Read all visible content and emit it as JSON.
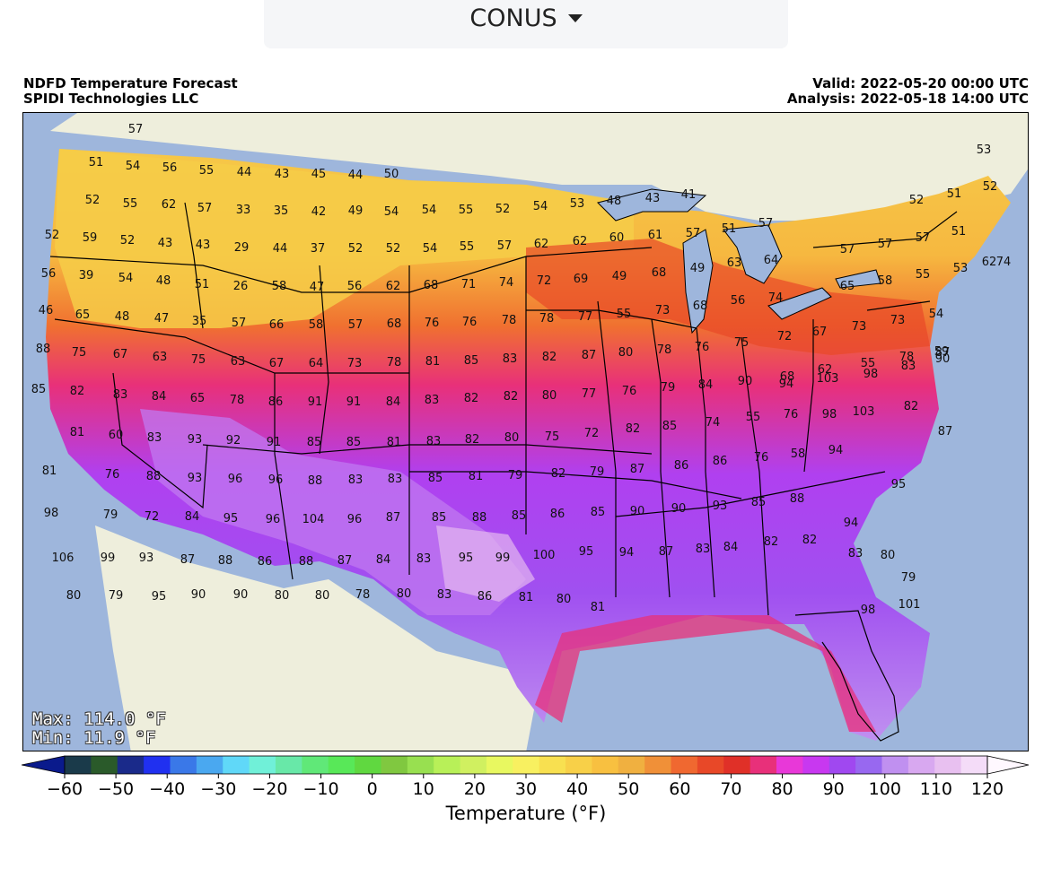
{
  "region_selector": {
    "value": "CONUS",
    "icon": "caret-down-icon"
  },
  "header": {
    "title": "NDFD Temperature Forecast",
    "credit": "SPIDI Technologies LLC",
    "valid": "Valid: 2022-05-20 00:00 UTC",
    "analysis": "Analysis: 2022-05-18 14:00 UTC"
  },
  "stats": {
    "max": "Max: 114.0 °F",
    "min": "Min: 11.9 °F"
  },
  "colorbar": {
    "title": "Temperature (°F)",
    "ticks": [
      "−60",
      "−50",
      "−40",
      "−30",
      "−20",
      "−10",
      "0",
      "10",
      "20",
      "30",
      "40",
      "50",
      "60",
      "70",
      "80",
      "90",
      "100",
      "110",
      "120"
    ],
    "colors": [
      "#0a1a8c",
      "#1a3a4a",
      "#2a5a2a",
      "#1a2a8a",
      "#2030f0",
      "#3a78e8",
      "#4aa8f0",
      "#60d8f8",
      "#70f0d8",
      "#68e8a8",
      "#60e878",
      "#58e858",
      "#60d840",
      "#80c840",
      "#98e050",
      "#b8f058",
      "#d0f060",
      "#e8f860",
      "#f8f060",
      "#f8e050",
      "#f8d048",
      "#f8c040",
      "#f0b040",
      "#f09038",
      "#f06830",
      "#e84828",
      "#e03028",
      "#e8307a",
      "#e838d8",
      "#c838f0",
      "#a048f0",
      "#9868f0",
      "#c090f0",
      "#d8a8f0",
      "#e8c0f0",
      "#f4dcf8",
      "#fff8ff"
    ],
    "min": -60,
    "max": 120
  },
  "map_labels": [
    [
      "57"
    ],
    [
      "51"
    ],
    [
      "54"
    ],
    [
      "56"
    ],
    [
      "55"
    ],
    [
      "44"
    ],
    [
      "43"
    ],
    [
      "45"
    ],
    [
      "44"
    ],
    [
      "50"
    ],
    [
      "52"
    ],
    [
      "55"
    ],
    [
      "62"
    ],
    [
      "57"
    ],
    [
      "33"
    ],
    [
      "35"
    ],
    [
      "42"
    ],
    [
      "49"
    ],
    [
      "54"
    ],
    [
      "54"
    ],
    [
      "55"
    ],
    [
      "52"
    ],
    [
      "54"
    ],
    [
      "53"
    ],
    [
      "48"
    ],
    [
      "43"
    ],
    [
      "41"
    ],
    [
      "52"
    ],
    [
      "51"
    ],
    [
      "52"
    ],
    [
      "53"
    ],
    [
      "52"
    ],
    [
      "59"
    ],
    [
      "52"
    ],
    [
      "43"
    ],
    [
      "43"
    ],
    [
      "29"
    ],
    [
      "44"
    ],
    [
      "37"
    ],
    [
      "52"
    ],
    [
      "52"
    ],
    [
      "54"
    ],
    [
      "55"
    ],
    [
      "57"
    ],
    [
      "62"
    ],
    [
      "62"
    ],
    [
      "60"
    ],
    [
      "61"
    ],
    [
      "57"
    ],
    [
      "51"
    ],
    [
      "57"
    ],
    [
      "57"
    ],
    [
      "57"
    ],
    [
      "57"
    ],
    [
      "51"
    ],
    [
      "62"
    ],
    [
      "56"
    ],
    [
      "39"
    ],
    [
      "54"
    ],
    [
      "48"
    ],
    [
      "51"
    ],
    [
      "26"
    ],
    [
      "58"
    ],
    [
      "47"
    ],
    [
      "56"
    ],
    [
      "62"
    ],
    [
      "68"
    ],
    [
      "71"
    ],
    [
      "74"
    ],
    [
      "72"
    ],
    [
      "69"
    ],
    [
      "49"
    ],
    [
      "68"
    ],
    [
      "49"
    ],
    [
      "63"
    ],
    [
      "64"
    ],
    [
      "65"
    ],
    [
      "58"
    ],
    [
      "55"
    ],
    [
      "53"
    ],
    [
      "74"
    ],
    [
      "46"
    ],
    [
      "65"
    ],
    [
      "48"
    ],
    [
      "47"
    ],
    [
      "35"
    ],
    [
      "57"
    ],
    [
      "66"
    ],
    [
      "58"
    ],
    [
      "57"
    ],
    [
      "68"
    ],
    [
      "76"
    ],
    [
      "76"
    ],
    [
      "78"
    ],
    [
      "78"
    ],
    [
      "77"
    ],
    [
      "55"
    ],
    [
      "73"
    ],
    [
      "68"
    ],
    [
      "56"
    ],
    [
      "74"
    ],
    [
      "72"
    ],
    [
      "67"
    ],
    [
      "73"
    ],
    [
      "73"
    ],
    [
      "54"
    ],
    [
      "88"
    ],
    [
      "75"
    ],
    [
      "67"
    ],
    [
      "63"
    ],
    [
      "75"
    ],
    [
      "63"
    ],
    [
      "67"
    ],
    [
      "64"
    ],
    [
      "73"
    ],
    [
      "78"
    ],
    [
      "81"
    ],
    [
      "85"
    ],
    [
      "83"
    ],
    [
      "82"
    ],
    [
      "87"
    ],
    [
      "80"
    ],
    [
      "78"
    ],
    [
      "76"
    ],
    [
      "75"
    ],
    [
      "68"
    ],
    [
      "62"
    ],
    [
      "55"
    ],
    [
      "78"
    ],
    [
      "59"
    ],
    [
      "87"
    ],
    [
      "85"
    ],
    [
      "82"
    ],
    [
      "83"
    ],
    [
      "84"
    ],
    [
      "65"
    ],
    [
      "78"
    ],
    [
      "86"
    ],
    [
      "91"
    ],
    [
      "91"
    ],
    [
      "84"
    ],
    [
      "83"
    ],
    [
      "82"
    ],
    [
      "82"
    ],
    [
      "80"
    ],
    [
      "77"
    ],
    [
      "76"
    ],
    [
      "79"
    ],
    [
      "84"
    ],
    [
      "90"
    ],
    [
      "94"
    ],
    [
      "103"
    ],
    [
      "98"
    ],
    [
      "83"
    ],
    [
      "90"
    ],
    [
      "81"
    ],
    [
      "60"
    ],
    [
      "83"
    ],
    [
      "93"
    ],
    [
      "92"
    ],
    [
      "91"
    ],
    [
      "85"
    ],
    [
      "85"
    ],
    [
      "81"
    ],
    [
      "83"
    ],
    [
      "82"
    ],
    [
      "80"
    ],
    [
      "75"
    ],
    [
      "72"
    ],
    [
      "82"
    ],
    [
      "85"
    ],
    [
      "74"
    ],
    [
      "55"
    ],
    [
      "76"
    ],
    [
      "98"
    ],
    [
      "103"
    ],
    [
      "82"
    ],
    [
      "87"
    ],
    [
      "81"
    ],
    [
      "76"
    ],
    [
      "88"
    ],
    [
      "93"
    ],
    [
      "96"
    ],
    [
      "96"
    ],
    [
      "88"
    ],
    [
      "83"
    ],
    [
      "83"
    ],
    [
      "85"
    ],
    [
      "81"
    ],
    [
      "79"
    ],
    [
      "82"
    ],
    [
      "79"
    ],
    [
      "87"
    ],
    [
      "86"
    ],
    [
      "86"
    ],
    [
      "76"
    ],
    [
      "58"
    ],
    [
      "94"
    ],
    [
      "95"
    ],
    [
      "98"
    ],
    [
      "79"
    ],
    [
      "72"
    ],
    [
      "84"
    ],
    [
      "95"
    ],
    [
      "96"
    ],
    [
      "104"
    ],
    [
      "96"
    ],
    [
      "87"
    ],
    [
      "85"
    ],
    [
      "88"
    ],
    [
      "85"
    ],
    [
      "86"
    ],
    [
      "85"
    ],
    [
      "90"
    ],
    [
      "90"
    ],
    [
      "93"
    ],
    [
      "85"
    ],
    [
      "88"
    ],
    [
      "94"
    ],
    [
      "98"
    ],
    [
      "101"
    ],
    [
      "106"
    ],
    [
      "99"
    ],
    [
      "93"
    ],
    [
      "87"
    ],
    [
      "88"
    ],
    [
      "86"
    ],
    [
      "88"
    ],
    [
      "87"
    ],
    [
      "84"
    ],
    [
      "83"
    ],
    [
      "95"
    ],
    [
      "99"
    ],
    [
      "100"
    ],
    [
      "95"
    ],
    [
      "94"
    ],
    [
      "87"
    ],
    [
      "83"
    ],
    [
      "84"
    ],
    [
      "82"
    ],
    [
      "82"
    ],
    [
      "83"
    ],
    [
      "80"
    ],
    [
      "79"
    ],
    [
      "80"
    ],
    [
      "79"
    ],
    [
      "95"
    ],
    [
      "90"
    ],
    [
      "90"
    ],
    [
      "80"
    ],
    [
      "80"
    ],
    [
      "78"
    ],
    [
      "80"
    ],
    [
      "83"
    ],
    [
      "86"
    ],
    [
      "81"
    ],
    [
      "80"
    ],
    [
      "81"
    ]
  ]
}
